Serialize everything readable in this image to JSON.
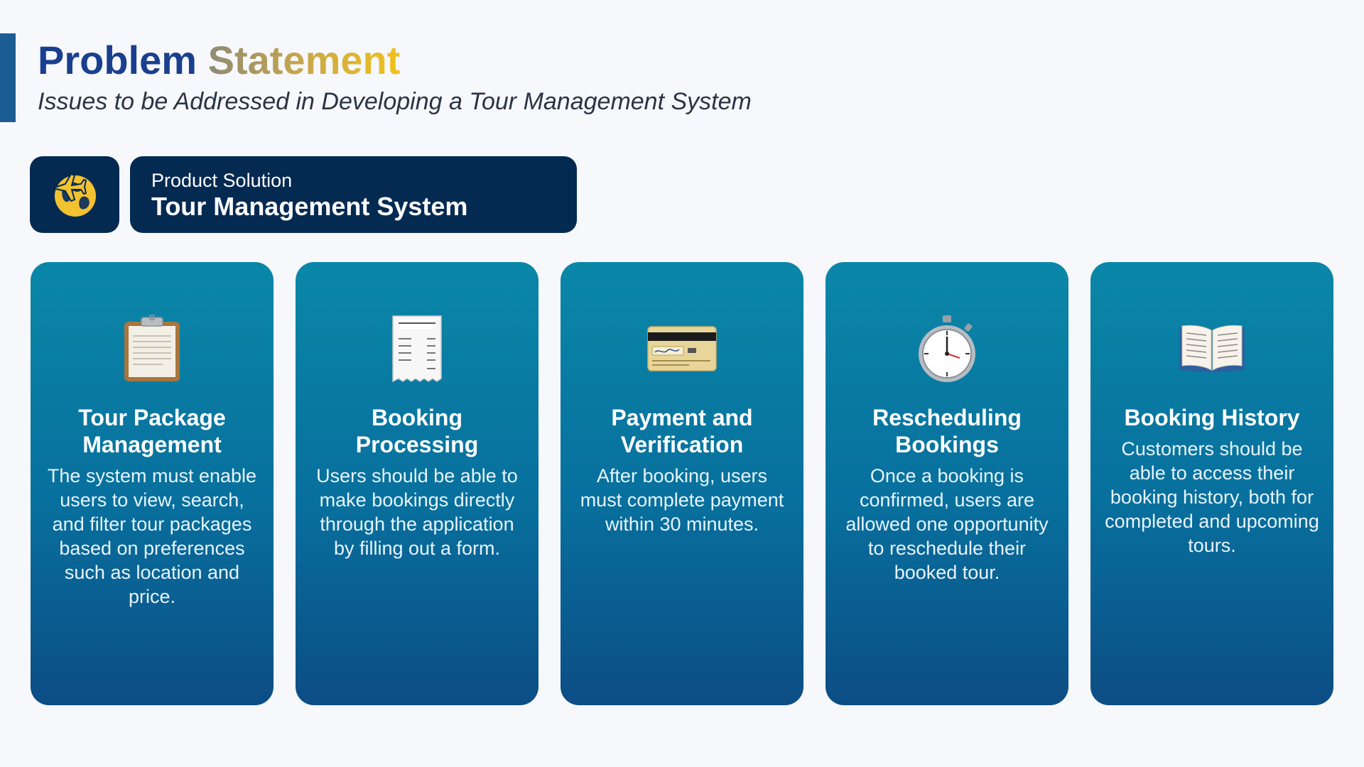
{
  "header": {
    "title_part1": "Problem",
    "title_part2": "Statement",
    "subtitle": "Issues to be Addressed in Developing a Tour Management System"
  },
  "product": {
    "icon": "globe-with-airplane-icon",
    "label": "Product Solution",
    "name": "Tour Management System"
  },
  "cards": [
    {
      "icon": "clipboard-icon",
      "title": "Tour Package Management",
      "description": "The system must enable users to view, search, and filter tour packages based on preferences such as location and price."
    },
    {
      "icon": "receipt-icon",
      "title": "Booking Processing",
      "description": "Users should be able to make bookings directly through the application by filling out a form."
    },
    {
      "icon": "credit-card-icon",
      "title": "Payment and Verification",
      "description": "After booking, users must complete payment within 30 minutes."
    },
    {
      "icon": "stopwatch-icon",
      "title": "Rescheduling Bookings",
      "description": "Once a booking is confirmed, users are allowed one opportunity to reschedule their booked tour."
    },
    {
      "icon": "open-book-icon",
      "title": "Booking History",
      "description": "Customers should be able to access their booking history, both for completed and upcoming tours."
    }
  ],
  "colors": {
    "dark_navy": "#052a52",
    "card_top": "#0a87a8",
    "card_bottom": "#0c4d85",
    "title_blue": "#1b3f8f",
    "title_gold": "#f0c21d",
    "accent_bar": "#1b5c93"
  }
}
